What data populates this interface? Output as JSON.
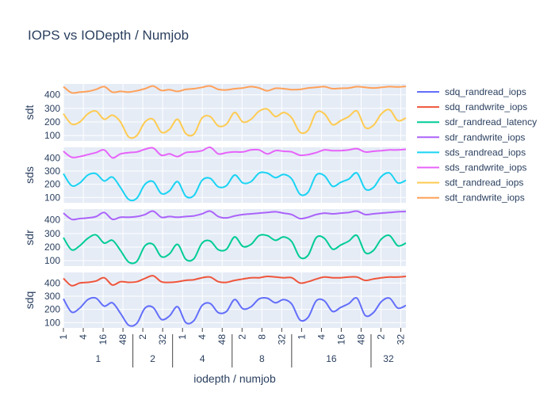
{
  "chart_data": {
    "type": "line",
    "title": "IOPS vs IODepth / Numjob",
    "xlabel": "iodepth / numjob",
    "colors": {
      "sdq_randread_iops": "#636efa",
      "sdq_randwrite_iops": "#EF553B",
      "sdr_randread_latency": "#00cc96",
      "sdr_randwrite_iops": "#ab63fa",
      "sds_randread_iops": "#19d3f3",
      "sds_randwrite_iops": "#e763fa",
      "sdt_randread_iops": "#FECB52",
      "sdt_randwrite_iops": "#FFA15A"
    },
    "numjob_groups": [
      "1",
      "2",
      "4",
      "8",
      "16",
      "32"
    ],
    "iodepth_ticks": [
      "1",
      "4",
      "16",
      "48",
      "2",
      "32",
      "1",
      "4",
      "48",
      "2",
      "8",
      "32",
      "1",
      "4",
      "16",
      "48",
      "2",
      "32"
    ],
    "ylim": [
      60,
      480
    ],
    "yticks": [
      100,
      200,
      300,
      400
    ],
    "panels": [
      {
        "ylabel": "sdt",
        "series": [
          {
            "name": "sdt_randread_iops",
            "values": [
              260,
              185,
              200,
              260,
              280,
              220,
              250,
              200,
              90,
              100,
              200,
              220,
              125,
              145,
              220,
              115,
              110,
              230,
              240,
              170,
              185,
              270,
              200,
              220,
              280,
              295,
              240,
              270,
              230,
              125,
              140,
              270,
              260,
              180,
              210,
              240,
              280,
              160,
              175,
              260,
              290,
              210,
              230
            ]
          },
          {
            "name": "sdt_randwrite_iops",
            "values": [
              460,
              415,
              420,
              425,
              440,
              460,
              420,
              425,
              420,
              430,
              445,
              465,
              432,
              438,
              425,
              440,
              445,
              455,
              465,
              440,
              436,
              445,
              450,
              460,
              450,
              430,
              448,
              445,
              438,
              440,
              450,
              455,
              460,
              445,
              448,
              450,
              460,
              455,
              450,
              455,
              460,
              458,
              462
            ]
          }
        ]
      },
      {
        "ylabel": "sds",
        "series": [
          {
            "name": "sds_randread_iops",
            "values": [
              280,
              190,
              210,
              270,
              280,
              225,
              255,
              175,
              85,
              95,
              200,
              220,
              130,
              150,
              220,
              110,
              115,
              230,
              245,
              180,
              190,
              270,
              210,
              220,
              285,
              285,
              250,
              275,
              240,
              125,
              140,
              270,
              265,
              185,
              215,
              240,
              285,
              165,
              175,
              260,
              285,
              210,
              230
            ]
          },
          {
            "name": "sds_randwrite_iops",
            "values": [
              450,
              405,
              410,
              425,
              440,
              460,
              400,
              430,
              440,
              445,
              465,
              475,
              420,
              430,
              410,
              440,
              445,
              455,
              480,
              430,
              440,
              445,
              445,
              460,
              460,
              430,
              455,
              450,
              445,
              420,
              425,
              440,
              460,
              455,
              455,
              460,
              470,
              445,
              450,
              455,
              460,
              460,
              465
            ]
          }
        ]
      },
      {
        "ylabel": "sdr",
        "series": [
          {
            "name": "sdr_randread_latency",
            "values": [
              270,
              180,
              210,
              265,
              290,
              230,
              250,
              175,
              90,
              95,
              210,
              220,
              130,
              150,
              220,
              110,
              115,
              230,
              245,
              180,
              185,
              275,
              205,
              220,
              285,
              285,
              250,
              275,
              240,
              125,
              140,
              270,
              265,
              185,
              215,
              245,
              285,
              160,
              175,
              260,
              285,
              210,
              230
            ]
          },
          {
            "name": "sdr_randwrite_iops",
            "values": [
              450,
              405,
              410,
              415,
              425,
              455,
              405,
              420,
              420,
              425,
              440,
              465,
              420,
              425,
              420,
              425,
              430,
              445,
              465,
              425,
              415,
              430,
              440,
              445,
              450,
              455,
              460,
              450,
              440,
              410,
              420,
              440,
              450,
              445,
              450,
              455,
              465,
              440,
              445,
              450,
              455,
              460,
              462
            ]
          }
        ]
      },
      {
        "ylabel": "sdq",
        "series": [
          {
            "name": "sdq_randread_iops",
            "values": [
              280,
              180,
              210,
              275,
              285,
              225,
              250,
              170,
              80,
              95,
              210,
              215,
              125,
              150,
              220,
              100,
              115,
              230,
              245,
              175,
              185,
              275,
              205,
              220,
              280,
              285,
              250,
              275,
              240,
              120,
              140,
              265,
              265,
              185,
              215,
              245,
              285,
              155,
              175,
              260,
              285,
              210,
              230
            ]
          },
          {
            "name": "sdq_randwrite_iops",
            "values": [
              435,
              380,
              400,
              405,
              415,
              440,
              385,
              410,
              405,
              410,
              435,
              455,
              410,
              405,
              410,
              420,
              425,
              440,
              445,
              410,
              405,
              420,
              430,
              440,
              440,
              450,
              445,
              440,
              440,
              400,
              410,
              430,
              445,
              440,
              440,
              445,
              445,
              420,
              430,
              440,
              445,
              445,
              450
            ]
          }
        ]
      }
    ]
  }
}
